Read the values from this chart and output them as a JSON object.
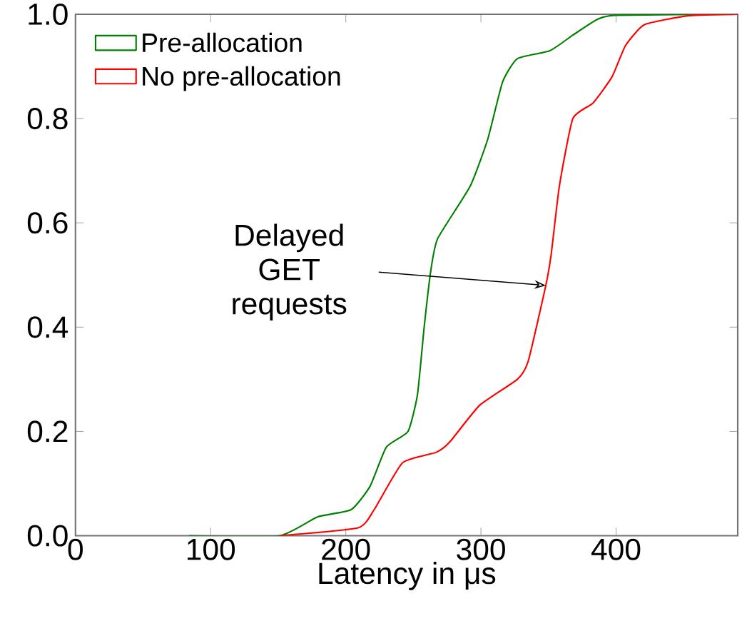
{
  "chart_data": {
    "type": "line",
    "xlabel": "Latency in μs",
    "xlim": [
      0,
      490
    ],
    "ylim": [
      0,
      1
    ],
    "xticks": [
      0,
      100,
      200,
      300,
      400
    ],
    "yticks": [
      {
        "value": 0,
        "label": "0.0"
      },
      {
        "value": 0.2,
        "label": "0.2"
      },
      {
        "value": 0.4,
        "label": "0.4"
      },
      {
        "value": 0.6,
        "label": "0.6"
      },
      {
        "value": 0.8,
        "label": "0.8"
      },
      {
        "value": 1,
        "label": "1.0"
      }
    ],
    "legend": "top left",
    "grid": false,
    "marker": "none",
    "line_style": "solid",
    "annotations": [
      {
        "text": "Delayed GET requests",
        "x": 348,
        "y": 0.48
      }
    ],
    "series": [
      {
        "name": "Pre-allocation",
        "color": "#008000",
        "x": [
          84,
          151,
          179,
          204,
          218,
          230,
          246,
          253,
          258,
          263,
          268,
          292,
          305,
          316,
          327,
          351,
          368,
          386,
          400,
          490
        ],
        "values": [
          0,
          0,
          0.036,
          0.05,
          0.095,
          0.17,
          0.2,
          0.27,
          0.4,
          0.51,
          0.57,
          0.67,
          0.76,
          0.87,
          0.915,
          0.93,
          0.96,
          0.99,
          0.998,
          1.0
        ]
      },
      {
        "name": "No pre-allocation",
        "color": "#ff0000",
        "x": [
          151,
          209,
          221,
          242,
          267,
          277,
          299,
          327,
          335,
          348,
          352,
          358,
          368,
          383,
          397,
          407,
          421,
          453,
          490
        ],
        "values": [
          0,
          0.015,
          0.05,
          0.14,
          0.16,
          0.18,
          0.25,
          0.3,
          0.335,
          0.48,
          0.54,
          0.67,
          0.8,
          0.83,
          0.88,
          0.94,
          0.98,
          0.997,
          1.0
        ]
      }
    ]
  }
}
